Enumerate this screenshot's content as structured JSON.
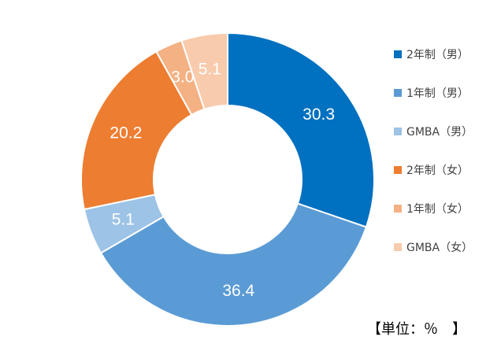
{
  "chart_data": {
    "type": "pie",
    "donut": true,
    "start_angle_deg": 0,
    "direction": "clockwise",
    "legend_position": "right",
    "categories": [
      "2年制（男）",
      "1年制（男）",
      "GMBA（男）",
      "2年制（女）",
      "1年制（女）",
      "GMBA（女）"
    ],
    "values": [
      30.3,
      36.4,
      5.1,
      20.2,
      3.0,
      5.1
    ],
    "value_labels": [
      "30.3",
      "36.4",
      "5.1",
      "20.2",
      "3.0",
      "5.1"
    ],
    "colors": [
      "#0070C0",
      "#5B9BD5",
      "#9DC3E6",
      "#ED7D31",
      "#F4B183",
      "#F8CBAD"
    ]
  },
  "note": {
    "unit": "【単位：％　】"
  }
}
